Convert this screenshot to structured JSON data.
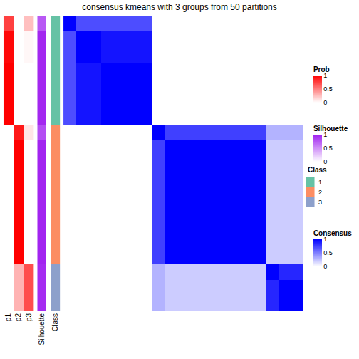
{
  "chart_data": {
    "type": "heatmap",
    "title": "consensus kmeans with 3 groups from 50 partitions",
    "prob": {
      "name": "Prob",
      "labels": [
        "p1",
        "p2",
        "p3"
      ],
      "color": "#FF0000",
      "cells": [
        [
          0.75,
          0,
          0.25
        ],
        [
          0.97,
          0,
          0.03
        ],
        [
          0.97,
          0,
          0.03
        ],
        [
          1,
          0,
          0
        ],
        [
          1,
          0,
          0
        ],
        [
          1,
          0,
          0
        ],
        [
          1,
          0,
          0
        ],
        [
          0,
          0.9,
          0.1
        ],
        [
          0,
          1,
          0
        ],
        [
          0,
          1,
          0
        ],
        [
          0,
          1,
          0
        ],
        [
          0,
          1,
          0
        ],
        [
          0,
          1,
          0
        ],
        [
          0,
          1,
          0
        ],
        [
          0,
          1,
          0
        ],
        [
          0,
          1,
          0
        ],
        [
          0,
          0.3,
          0.7
        ],
        [
          0,
          0.3,
          0.7
        ],
        [
          0,
          0.3,
          0.7
        ]
      ],
      "range": [
        0,
        1
      ],
      "ticks": [
        0,
        0.5,
        1
      ]
    },
    "silhouette": {
      "name": "Silhouette",
      "color": "#A020F0",
      "values": [
        0.75,
        0.97,
        0.97,
        0.97,
        0.97,
        0.97,
        0.97,
        0.8,
        0.98,
        0.98,
        0.98,
        0.98,
        0.98,
        0.98,
        0.98,
        0.98,
        0.95,
        0.95,
        0.95
      ],
      "range": [
        0,
        1
      ],
      "ticks": [
        0,
        0.5,
        1
      ]
    },
    "class": {
      "name": "Class",
      "levels": [
        1,
        2,
        3
      ],
      "colors": [
        "#66C2A5",
        "#FC8D62",
        "#8DA0CB"
      ],
      "values": [
        1,
        1,
        1,
        1,
        1,
        1,
        1,
        2,
        2,
        2,
        2,
        2,
        2,
        2,
        2,
        2,
        3,
        3,
        3
      ]
    },
    "consensus": {
      "name": "Consensus",
      "color": "#0000FF",
      "range": [
        0,
        1
      ],
      "ticks": [
        0,
        0.5,
        1
      ],
      "cells": [
        [
          1,
          0.7,
          0.7,
          0.7,
          0.7,
          0.7,
          0.7,
          0,
          0,
          0,
          0,
          0,
          0,
          0,
          0,
          0,
          0,
          0,
          0
        ],
        [
          0.7,
          1,
          1,
          0.92,
          0.92,
          0.92,
          0.92,
          0,
          0,
          0,
          0,
          0,
          0,
          0,
          0,
          0,
          0,
          0,
          0
        ],
        [
          0.7,
          1,
          1,
          0.92,
          0.92,
          0.92,
          0.92,
          0,
          0,
          0,
          0,
          0,
          0,
          0,
          0,
          0,
          0,
          0,
          0
        ],
        [
          0.7,
          0.92,
          0.92,
          1,
          1,
          1,
          1,
          0,
          0,
          0,
          0,
          0,
          0,
          0,
          0,
          0,
          0,
          0,
          0
        ],
        [
          0.7,
          0.92,
          0.92,
          1,
          1,
          1,
          1,
          0,
          0,
          0,
          0,
          0,
          0,
          0,
          0,
          0,
          0,
          0,
          0
        ],
        [
          0.7,
          0.92,
          0.92,
          1,
          1,
          1,
          1,
          0,
          0,
          0,
          0,
          0,
          0,
          0,
          0,
          0,
          0,
          0,
          0
        ],
        [
          0.7,
          0.92,
          0.92,
          1,
          1,
          1,
          1,
          0,
          0,
          0,
          0,
          0,
          0,
          0,
          0,
          0,
          0,
          0,
          0
        ],
        [
          0,
          0,
          0,
          0,
          0,
          0,
          0,
          1,
          0.75,
          0.75,
          0.75,
          0.75,
          0.75,
          0.75,
          0.75,
          0.75,
          0.3,
          0.3,
          0.3
        ],
        [
          0,
          0,
          0,
          0,
          0,
          0,
          0,
          0.75,
          1,
          1,
          1,
          1,
          1,
          1,
          1,
          1,
          0.2,
          0.2,
          0.2
        ],
        [
          0,
          0,
          0,
          0,
          0,
          0,
          0,
          0.75,
          1,
          1,
          1,
          1,
          1,
          1,
          1,
          1,
          0.2,
          0.2,
          0.2
        ],
        [
          0,
          0,
          0,
          0,
          0,
          0,
          0,
          0.75,
          1,
          1,
          1,
          1,
          1,
          1,
          1,
          1,
          0.2,
          0.2,
          0.2
        ],
        [
          0,
          0,
          0,
          0,
          0,
          0,
          0,
          0.75,
          1,
          1,
          1,
          1,
          1,
          1,
          1,
          1,
          0.2,
          0.2,
          0.2
        ],
        [
          0,
          0,
          0,
          0,
          0,
          0,
          0,
          0.75,
          1,
          1,
          1,
          1,
          1,
          1,
          1,
          1,
          0.2,
          0.2,
          0.2
        ],
        [
          0,
          0,
          0,
          0,
          0,
          0,
          0,
          0.75,
          1,
          1,
          1,
          1,
          1,
          1,
          1,
          1,
          0.2,
          0.2,
          0.2
        ],
        [
          0,
          0,
          0,
          0,
          0,
          0,
          0,
          0.75,
          1,
          1,
          1,
          1,
          1,
          1,
          1,
          1,
          0.2,
          0.2,
          0.2
        ],
        [
          0,
          0,
          0,
          0,
          0,
          0,
          0,
          0.75,
          1,
          1,
          1,
          1,
          1,
          1,
          1,
          1,
          0.2,
          0.2,
          0.2
        ],
        [
          0,
          0,
          0,
          0,
          0,
          0,
          0,
          0.3,
          0.2,
          0.2,
          0.2,
          0.2,
          0.2,
          0.2,
          0.2,
          0.2,
          1,
          0.85,
          0.85
        ],
        [
          0,
          0,
          0,
          0,
          0,
          0,
          0,
          0.3,
          0.2,
          0.2,
          0.2,
          0.2,
          0.2,
          0.2,
          0.2,
          0.2,
          0.85,
          1,
          1
        ],
        [
          0,
          0,
          0,
          0,
          0,
          0,
          0,
          0.3,
          0.2,
          0.2,
          0.2,
          0.2,
          0.2,
          0.2,
          0.2,
          0.2,
          0.85,
          1,
          1
        ]
      ]
    }
  }
}
